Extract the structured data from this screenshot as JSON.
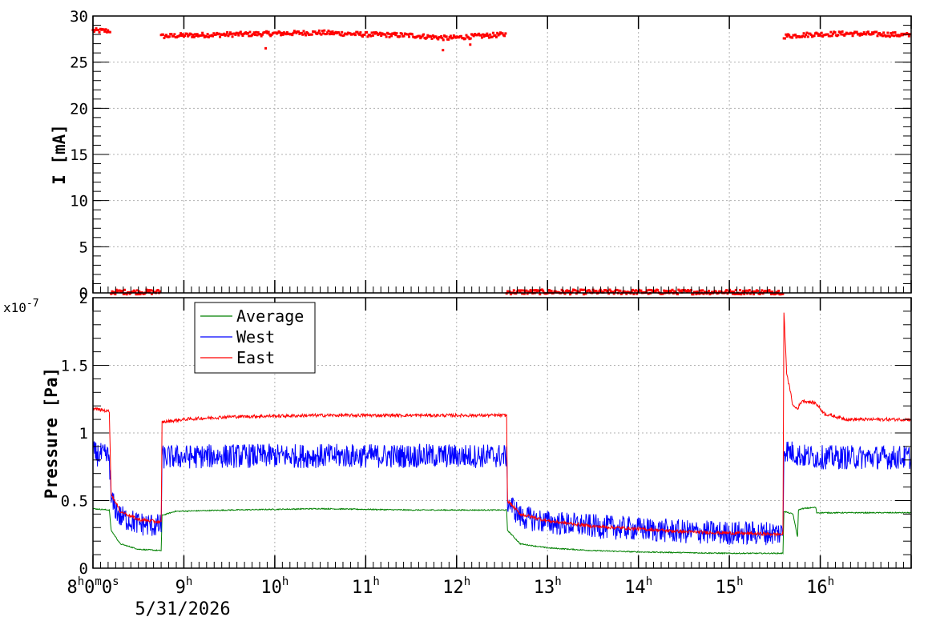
{
  "chart_data": [
    {
      "id": "current",
      "type": "scatter",
      "ylabel": "I [mA]",
      "xlim": [
        "07:00",
        "16:00"
      ],
      "ylim": [
        0,
        30
      ],
      "y_ticks": [
        "0",
        "5",
        "10",
        "15",
        "20",
        "25",
        "30"
      ],
      "grid": true,
      "series": [
        {
          "color": "#ff0000",
          "segments": [
            {
              "x": [
                7.0,
                7.2
              ],
              "y": [
                28.4,
                28.4
              ]
            },
            {
              "x": [
                7.75,
                8.0,
                8.5,
                9.0,
                9.5,
                10.0,
                10.5,
                10.9,
                11.2,
                11.55
              ],
              "y": [
                27.8,
                27.9,
                28.0,
                28.1,
                28.2,
                28.0,
                27.9,
                27.6,
                27.8,
                28.0
              ]
            },
            {
              "x": [
                14.6,
                14.9,
                15.3,
                15.8,
                16.0
              ],
              "y": [
                27.8,
                28.0,
                28.1,
                28.0,
                27.9
              ]
            },
            {
              "x": [
                7.2,
                7.75
              ],
              "y": [
                0.1,
                0.1
              ]
            },
            {
              "x": [
                11.55,
                14.6
              ],
              "y": [
                0.1,
                0.1
              ]
            }
          ],
          "outliers": [
            {
              "x": 8.9,
              "y": 26.5
            },
            {
              "x": 10.85,
              "y": 26.3
            },
            {
              "x": 11.15,
              "y": 26.9
            }
          ]
        }
      ]
    },
    {
      "id": "pressure",
      "type": "line",
      "ylabel": "Pressure [Pa]",
      "y_exponent": "x10",
      "y_exponent_power": "-7",
      "xlim": [
        "07:00",
        "16:00"
      ],
      "ylim": [
        0,
        2
      ],
      "y_ticks": [
        "0",
        "0.5",
        "1",
        "1.5",
        "2"
      ],
      "grid": true,
      "legend_position": "top-left",
      "series": [
        {
          "name": "Average",
          "color": "#008000",
          "noise": 0.004,
          "x": [
            7.0,
            7.18,
            7.2,
            7.3,
            7.5,
            7.75,
            7.76,
            7.9,
            8.5,
            9.5,
            10.5,
            11.55,
            11.56,
            11.7,
            12.0,
            12.5,
            13.0,
            13.5,
            14.0,
            14.59,
            14.6,
            14.7,
            14.75,
            14.76,
            14.8,
            14.95,
            14.96,
            15.3,
            16.0
          ],
          "y": [
            0.44,
            0.43,
            0.28,
            0.18,
            0.14,
            0.13,
            0.39,
            0.42,
            0.43,
            0.44,
            0.43,
            0.43,
            0.28,
            0.18,
            0.15,
            0.13,
            0.12,
            0.115,
            0.11,
            0.11,
            0.42,
            0.4,
            0.23,
            0.43,
            0.44,
            0.45,
            0.41,
            0.41,
            0.41
          ]
        },
        {
          "name": "West",
          "color": "#0000ff",
          "noise": 0.09,
          "x": [
            7.0,
            7.18,
            7.2,
            7.3,
            7.5,
            7.75,
            7.76,
            8.5,
            9.5,
            10.5,
            11.55,
            11.56,
            11.7,
            12.0,
            12.5,
            13.0,
            13.5,
            14.0,
            14.59,
            14.6,
            14.75,
            14.8,
            15.0,
            16.0
          ],
          "y": [
            0.85,
            0.82,
            0.5,
            0.38,
            0.33,
            0.31,
            0.82,
            0.83,
            0.83,
            0.83,
            0.83,
            0.5,
            0.38,
            0.34,
            0.31,
            0.29,
            0.27,
            0.26,
            0.26,
            0.88,
            0.84,
            0.83,
            0.82,
            0.82
          ]
        },
        {
          "name": "East",
          "color": "#ff0000",
          "noise": 0.012,
          "x": [
            7.0,
            7.18,
            7.2,
            7.3,
            7.5,
            7.75,
            7.76,
            8.0,
            8.5,
            9.5,
            10.5,
            11.55,
            11.56,
            11.7,
            12.0,
            12.5,
            13.0,
            13.5,
            14.0,
            14.59,
            14.6,
            14.63,
            14.7,
            14.75,
            14.8,
            14.95,
            15.05,
            15.3,
            16.0
          ],
          "y": [
            1.18,
            1.16,
            0.55,
            0.42,
            0.36,
            0.34,
            1.08,
            1.1,
            1.12,
            1.13,
            1.13,
            1.13,
            0.5,
            0.4,
            0.35,
            0.31,
            0.29,
            0.27,
            0.26,
            0.25,
            1.9,
            1.45,
            1.2,
            1.18,
            1.24,
            1.22,
            1.14,
            1.1,
            1.1
          ]
        }
      ]
    }
  ],
  "x_axis": {
    "ticks": [
      {
        "h": "8",
        "extra": "0",
        "m": "m",
        "s": "0",
        "ss": "s"
      },
      {
        "h": "9"
      },
      {
        "h": "10"
      },
      {
        "h": "11"
      },
      {
        "h": "12"
      },
      {
        "h": "13"
      },
      {
        "h": "14"
      },
      {
        "h": "15"
      },
      {
        "h": "16"
      }
    ],
    "hour_suffix": "h",
    "date_label": "5/31/2026"
  }
}
